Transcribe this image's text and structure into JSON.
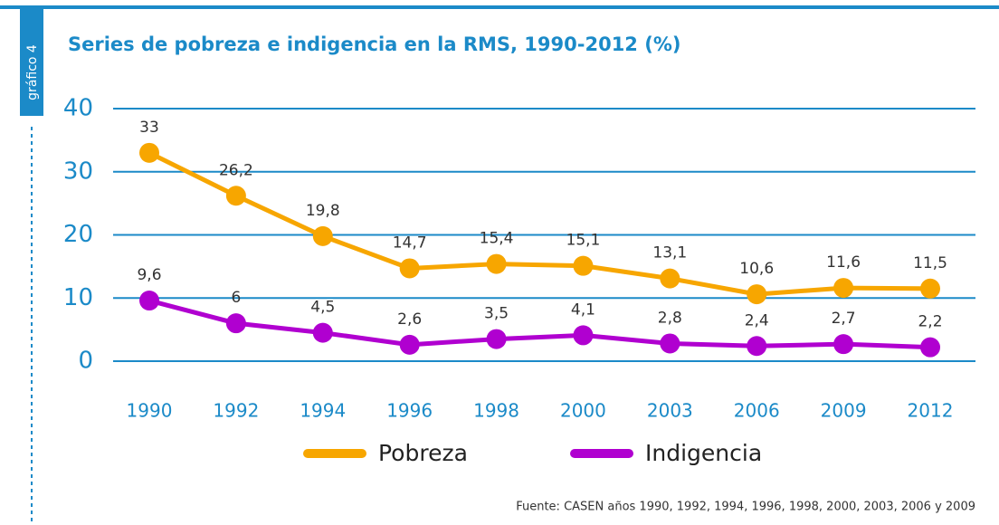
{
  "label": "gráfico 4",
  "chart_data": {
    "type": "line",
    "title": "Series de pobreza e indigencia en la RMS, 1990-2012 (%)",
    "categories": [
      "1990",
      "1992",
      "1994",
      "1996",
      "1998",
      "2000",
      "2003",
      "2006",
      "2009",
      "2012"
    ],
    "series": [
      {
        "name": "Pobreza",
        "color": "#f7a600",
        "values": [
          33,
          26.2,
          19.8,
          14.7,
          15.4,
          15.1,
          13.1,
          10.6,
          11.6,
          11.5
        ],
        "value_labels": [
          "33",
          "26,2",
          "19,8",
          "14,7",
          "15,4",
          "15,1",
          "13,1",
          "10,6",
          "11,6",
          "11,5"
        ]
      },
      {
        "name": "Indigencia",
        "color": "#b000d0",
        "values": [
          9.6,
          6,
          4.5,
          2.6,
          3.5,
          4.1,
          2.8,
          2.4,
          2.7,
          2.2
        ],
        "value_labels": [
          "9,6",
          "6",
          "4,5",
          "2,6",
          "3,5",
          "4,1",
          "2,8",
          "2,4",
          "2,7",
          "2,2"
        ]
      }
    ],
    "ylim": [
      0,
      40
    ],
    "yticks": [
      0,
      10,
      20,
      30,
      40
    ],
    "grid": true,
    "legend": "bottom",
    "source": "Fuente: CASEN años 1990, 1992, 1994, 1996, 1998, 2000, 2003, 2006 y 2009"
  }
}
